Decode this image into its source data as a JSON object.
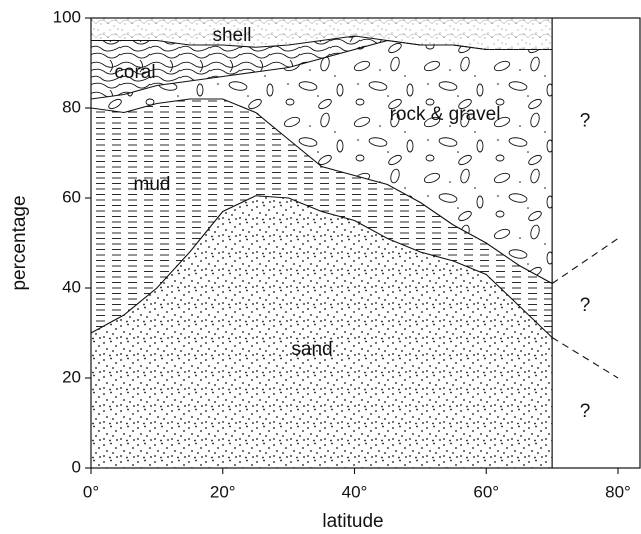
{
  "chart_data": {
    "type": "stacked-area",
    "x_label": "latitude",
    "y_label": "percentage",
    "x": [
      0,
      5,
      10,
      15,
      20,
      25,
      30,
      35,
      40,
      45,
      50,
      55,
      60,
      65,
      70
    ],
    "series": [
      {
        "name": "sand",
        "values": [
          30,
          34,
          40,
          48,
          57,
          60.5,
          60,
          57,
          55,
          51,
          48,
          46,
          43,
          36,
          29
        ]
      },
      {
        "name": "mud",
        "values": [
          50,
          45,
          41,
          34,
          25,
          18.5,
          13,
          10,
          10,
          12,
          11,
          8,
          7,
          9,
          12
        ]
      },
      {
        "name": "rock & gravel",
        "values": [
          2,
          4,
          4,
          4,
          5,
          9,
          16,
          24,
          28,
          32,
          35,
          40,
          43,
          48,
          52
        ]
      },
      {
        "name": "coral",
        "values": [
          13,
          12,
          10,
          8,
          7,
          5.5,
          5,
          4,
          3,
          0,
          0,
          0,
          0,
          0,
          0
        ]
      },
      {
        "name": "shell",
        "values": [
          5,
          5,
          5,
          6,
          6,
          6.5,
          6,
          5,
          4,
          5,
          6,
          6,
          7,
          7,
          7
        ]
      }
    ],
    "dashed_boundaries": [
      {
        "x": [
          70,
          80
        ],
        "y": [
          41,
          51
        ]
      },
      {
        "x": [
          70,
          80
        ],
        "y": [
          29,
          20
        ]
      }
    ],
    "annotations": [
      {
        "text": "?",
        "x": 75,
        "y": 77
      },
      {
        "text": "?",
        "x": 75,
        "y": 36
      },
      {
        "text": "?",
        "x": 75,
        "y": 12.5
      }
    ],
    "xlim": [
      0,
      80
    ],
    "ylim": [
      0,
      100
    ],
    "xticks": [
      {
        "value": 0,
        "label": "0°"
      },
      {
        "value": 20,
        "label": "20°"
      },
      {
        "value": 40,
        "label": "40°"
      },
      {
        "value": 60,
        "label": "60°"
      },
      {
        "value": 80,
        "label": "80°"
      }
    ],
    "yticks": [
      0,
      20,
      40,
      60,
      80,
      100
    ]
  }
}
